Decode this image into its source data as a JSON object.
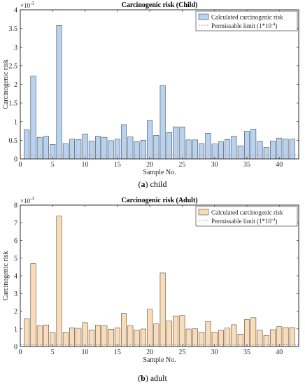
{
  "chart_data": [
    {
      "type": "bar",
      "title": "Carcinogenic risk (Child)",
      "xlabel": "Sample No.",
      "ylabel": "Carcinogenic risk",
      "y_exponent_label": "×10",
      "y_exponent_power": "-3",
      "caption_letter": "a",
      "caption_text": "child",
      "legend_position": "top-right",
      "legend_bar_label": "Calculated carcinogenic risk",
      "legend_line_label": "Permissable limit (1*10",
      "legend_line_power": "-4",
      "legend_line_suffix": ")",
      "bar_color": "#b6d3f2",
      "limit_color": "#d98a8a",
      "xlim": [
        0,
        43
      ],
      "ylim": [
        0,
        4
      ],
      "y_ticks": [
        "0",
        "0.5",
        "1",
        "1.5",
        "2",
        "2.5",
        "3",
        "3.5",
        "4"
      ],
      "x_ticks": [
        "0",
        "5",
        "10",
        "15",
        "20",
        "25",
        "30",
        "35",
        "40"
      ],
      "limit_value": 0.1,
      "x": [
        1,
        2,
        3,
        4,
        5,
        6,
        7,
        8,
        9,
        10,
        11,
        12,
        13,
        14,
        15,
        16,
        17,
        18,
        19,
        20,
        21,
        22,
        23,
        24,
        25,
        26,
        27,
        28,
        29,
        30,
        31,
        32,
        33,
        34,
        35,
        36,
        37,
        38,
        39,
        40,
        41,
        42
      ],
      "values": [
        0.78,
        2.22,
        0.58,
        0.61,
        0.39,
        3.58,
        0.41,
        0.53,
        0.52,
        0.67,
        0.48,
        0.61,
        0.58,
        0.49,
        0.53,
        0.92,
        0.59,
        0.46,
        0.5,
        1.03,
        0.63,
        1.97,
        0.71,
        0.86,
        0.86,
        0.51,
        0.51,
        0.41,
        0.69,
        0.4,
        0.46,
        0.52,
        0.61,
        0.35,
        0.74,
        0.8,
        0.47,
        0.31,
        0.48,
        0.56,
        0.53,
        0.53
      ]
    },
    {
      "type": "bar",
      "title": "Carcinogenic risk (Adult)",
      "xlabel": "Sample No.",
      "ylabel": "Carcinogenic risk",
      "y_exponent_label": "×10",
      "y_exponent_power": "-3",
      "caption_letter": "b",
      "caption_text": "adult",
      "legend_position": "top-right",
      "legend_bar_label": "Calculated carcinogenic risk",
      "legend_line_label": "Permissable limit (1*10",
      "legend_line_power": "-4",
      "legend_line_suffix": ")",
      "bar_color": "#fbdcb6",
      "limit_color": "#8aa8c8",
      "xlim": [
        0,
        43
      ],
      "ylim": [
        0,
        8
      ],
      "y_ticks": [
        "0",
        "1",
        "2",
        "3",
        "4",
        "5",
        "6",
        "7",
        "8"
      ],
      "x_ticks": [
        "0",
        "5",
        "10",
        "15",
        "20",
        "25",
        "30",
        "35",
        "40"
      ],
      "limit_value": 0.1,
      "x": [
        1,
        2,
        3,
        4,
        5,
        6,
        7,
        8,
        9,
        10,
        11,
        12,
        13,
        14,
        15,
        16,
        17,
        18,
        19,
        20,
        21,
        22,
        23,
        24,
        25,
        26,
        27,
        28,
        29,
        30,
        31,
        32,
        33,
        34,
        35,
        36,
        37,
        38,
        39,
        40,
        41,
        42
      ],
      "values": [
        1.57,
        4.69,
        1.17,
        1.22,
        0.79,
        7.38,
        0.81,
        1.06,
        1.03,
        1.35,
        0.94,
        1.21,
        1.17,
        0.98,
        1.06,
        1.88,
        1.17,
        0.93,
        0.99,
        2.11,
        1.28,
        4.16,
        1.44,
        1.73,
        1.75,
        0.99,
        1.0,
        0.8,
        1.4,
        0.81,
        0.92,
        1.04,
        1.23,
        0.7,
        1.52,
        1.63,
        0.93,
        0.62,
        0.95,
        1.12,
        1.07,
        1.07
      ]
    }
  ]
}
